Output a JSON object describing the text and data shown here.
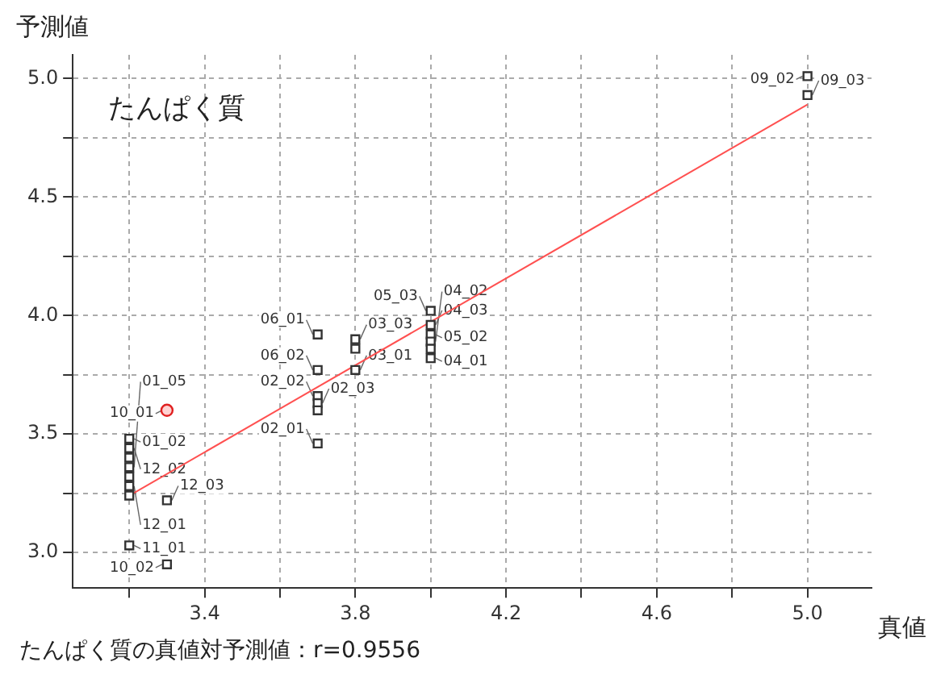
{
  "chart_data": {
    "type": "scatter",
    "xlabel": "真値",
    "ylabel": "予測値",
    "xlim": [
      3.05,
      5.17
    ],
    "ylim": [
      2.85,
      5.1
    ],
    "xticks": [
      {
        "value": 3.2,
        "label": null
      },
      3.4,
      {
        "value": 3.6,
        "label": null
      },
      3.8,
      {
        "value": 4.0,
        "label": null
      },
      4.2,
      {
        "value": 4.4,
        "label": null
      },
      4.6,
      {
        "value": 4.8,
        "label": null
      },
      {
        "value": 5.0,
        "label": "5.0"
      }
    ],
    "yticks": [
      {
        "value": 3.0,
        "label": "3.0"
      },
      {
        "value": 3.25,
        "label": null
      },
      3.5,
      {
        "value": 3.75,
        "label": null
      },
      {
        "value": 4.0,
        "label": "4.0"
      },
      {
        "value": 4.25,
        "label": null
      },
      4.5,
      {
        "value": 4.75,
        "label": null
      },
      {
        "value": 5.0,
        "label": "5.0"
      }
    ],
    "grid": true,
    "legend": false,
    "series": [
      {
        "type": "scatter",
        "color": "#333333",
        "marker": "square",
        "x": [
          3.2,
          3.2,
          3.2,
          3.2,
          3.2,
          3.2,
          3.2,
          3.3,
          3.2,
          3.3,
          3.7,
          3.7,
          3.7,
          3.7,
          3.7,
          3.8,
          3.8,
          3.7,
          3.8,
          4.0,
          4.0,
          4.0,
          4.0,
          4.0,
          4.0,
          5.0,
          5.0
        ],
        "values": [
          3.48,
          3.44,
          3.4,
          3.36,
          3.32,
          3.28,
          3.24,
          3.22,
          3.03,
          2.95,
          3.66,
          3.63,
          3.6,
          3.46,
          3.92,
          3.9,
          3.86,
          3.77,
          3.77,
          4.02,
          3.96,
          3.92,
          3.89,
          3.86,
          3.82,
          5.01,
          4.93
        ]
      },
      {
        "type": "scatter",
        "color": "#e02020",
        "marker": "circle",
        "x": [
          3.3
        ],
        "values": [
          3.6
        ]
      },
      {
        "type": "line",
        "color": "#ff5050",
        "marker": "none",
        "x": [
          3.2,
          5.0
        ],
        "values": [
          3.24,
          4.89
        ]
      }
    ],
    "annotations": [
      "たんぱく質",
      "たんぱく質の真値対予測値：r=0.9556",
      {
        "text": "01_02",
        "x": 3.2,
        "y": 3.48
      },
      {
        "text": "12_02",
        "x": 3.2,
        "y": 3.44
      },
      {
        "text": "01_05",
        "x": 3.2,
        "y": 3.36
      },
      {
        "text": "12_01",
        "x": 3.2,
        "y": 3.28
      },
      {
        "text": "12_03",
        "x": 3.3,
        "y": 3.22
      },
      {
        "text": "11_01",
        "x": 3.2,
        "y": 3.03
      },
      {
        "text": "10_02",
        "x": 3.3,
        "y": 2.95
      },
      {
        "text": "10_01",
        "x": 3.3,
        "y": 3.6
      },
      {
        "text": "02_02",
        "x": 3.7,
        "y": 3.66
      },
      {
        "text": "02_03",
        "x": 3.7,
        "y": 3.63
      },
      {
        "text": "02_01",
        "x": 3.7,
        "y": 3.46
      },
      {
        "text": "06_01",
        "x": 3.7,
        "y": 3.92
      },
      {
        "text": "03_03",
        "x": 3.8,
        "y": 3.9
      },
      {
        "text": "06_02",
        "x": 3.7,
        "y": 3.77
      },
      {
        "text": "03_01",
        "x": 3.8,
        "y": 3.77
      },
      {
        "text": "05_03",
        "x": 4.0,
        "y": 4.02
      },
      {
        "text": "04_03",
        "x": 4.0,
        "y": 3.96
      },
      {
        "text": "05_02",
        "x": 4.0,
        "y": 3.92
      },
      {
        "text": "04_02",
        "x": 4.0,
        "y": 3.89
      },
      {
        "text": "04_01",
        "x": 4.0,
        "y": 3.82
      },
      {
        "text": "09_02",
        "x": 5.0,
        "y": 5.01
      },
      {
        "text": "09_03",
        "x": 5.0,
        "y": 4.93
      }
    ]
  }
}
